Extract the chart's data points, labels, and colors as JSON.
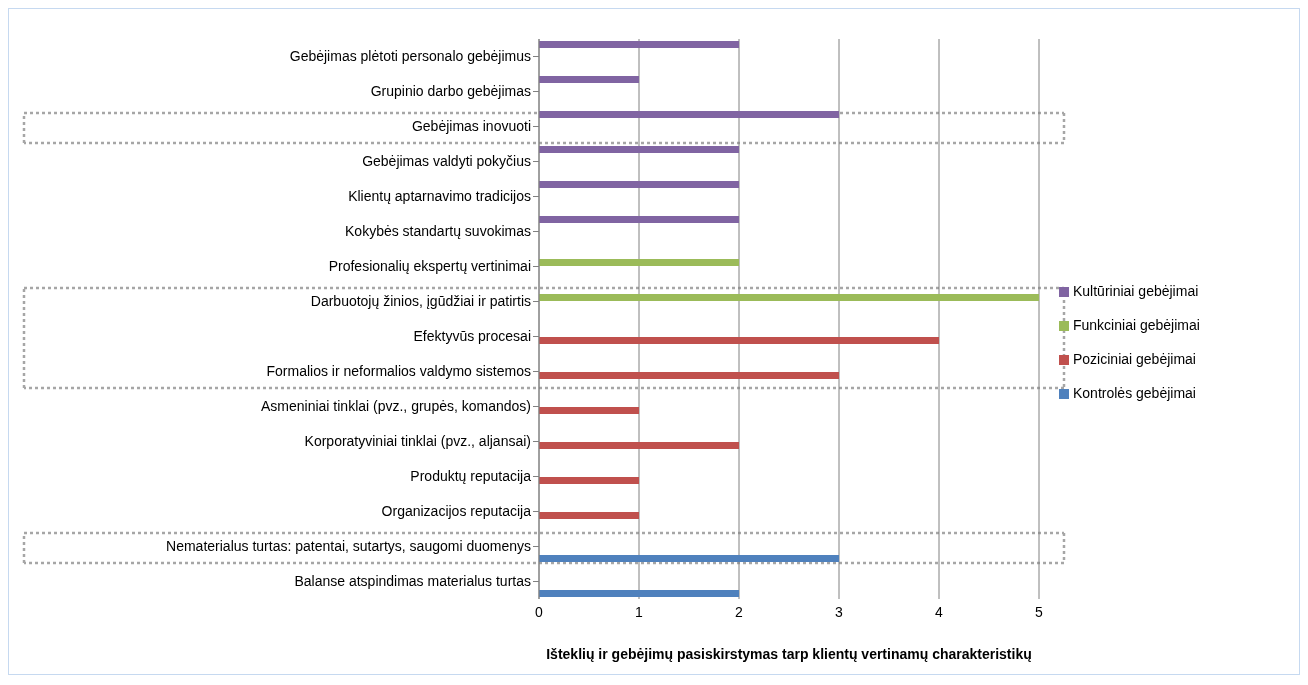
{
  "chart_data": {
    "type": "bar",
    "orientation": "horizontal",
    "xlabel": "Išteklių ir gebėjimų pasiskirstymas  tarp klientų vertinamų charakteristikų",
    "categories": [
      "Gebėjimas plėtoti personalo gebėjimus",
      "Grupinio darbo gebėjimas",
      "Gebėjimas inovuoti",
      "Gebėjimas valdyti pokyčius",
      "Klientų aptarnavimo tradicijos",
      "Kokybės standartų suvokimas",
      "Profesionalių ekspertų vertinimai",
      "Darbuotojų žinios, įgūdžiai ir patirtis",
      "Efektyvūs procesai",
      "Formalios ir neformalios valdymo sistemos",
      "Asmeniniai tinklai (pvz., grupės, komandos)",
      "Korporatyviniai tinklai (pvz., aljansai)",
      "Produktų reputacija",
      "Organizacijos reputacija",
      "Nematerialus turtas: patentai, sutartys, saugomi duomenys",
      "Balanse atspindimas materialus turtas"
    ],
    "series": [
      {
        "name": "Kultūriniai gebėjimai",
        "color": "#8064a2",
        "values": [
          2,
          1,
          3,
          2,
          2,
          2,
          null,
          null,
          null,
          null,
          null,
          null,
          null,
          null,
          null,
          null
        ]
      },
      {
        "name": "Funkciniai gebėjimai",
        "color": "#9bbb59",
        "values": [
          null,
          null,
          null,
          null,
          null,
          null,
          2,
          5,
          null,
          null,
          null,
          null,
          null,
          null,
          null,
          null
        ]
      },
      {
        "name": "Poziciniai gebėjimai",
        "color": "#c0504d",
        "values": [
          null,
          null,
          null,
          null,
          null,
          null,
          null,
          null,
          4,
          3,
          1,
          2,
          1,
          1,
          null,
          null
        ]
      },
      {
        "name": "Kontrolės gebėjimai",
        "color": "#4f81bd",
        "values": [
          null,
          null,
          null,
          null,
          null,
          null,
          null,
          null,
          null,
          null,
          null,
          null,
          null,
          null,
          3,
          2
        ]
      }
    ],
    "xlim": [
      0,
      5
    ],
    "xticks": [
      0,
      1,
      2,
      3,
      4,
      5
    ],
    "grid": "x",
    "legend": "right"
  }
}
